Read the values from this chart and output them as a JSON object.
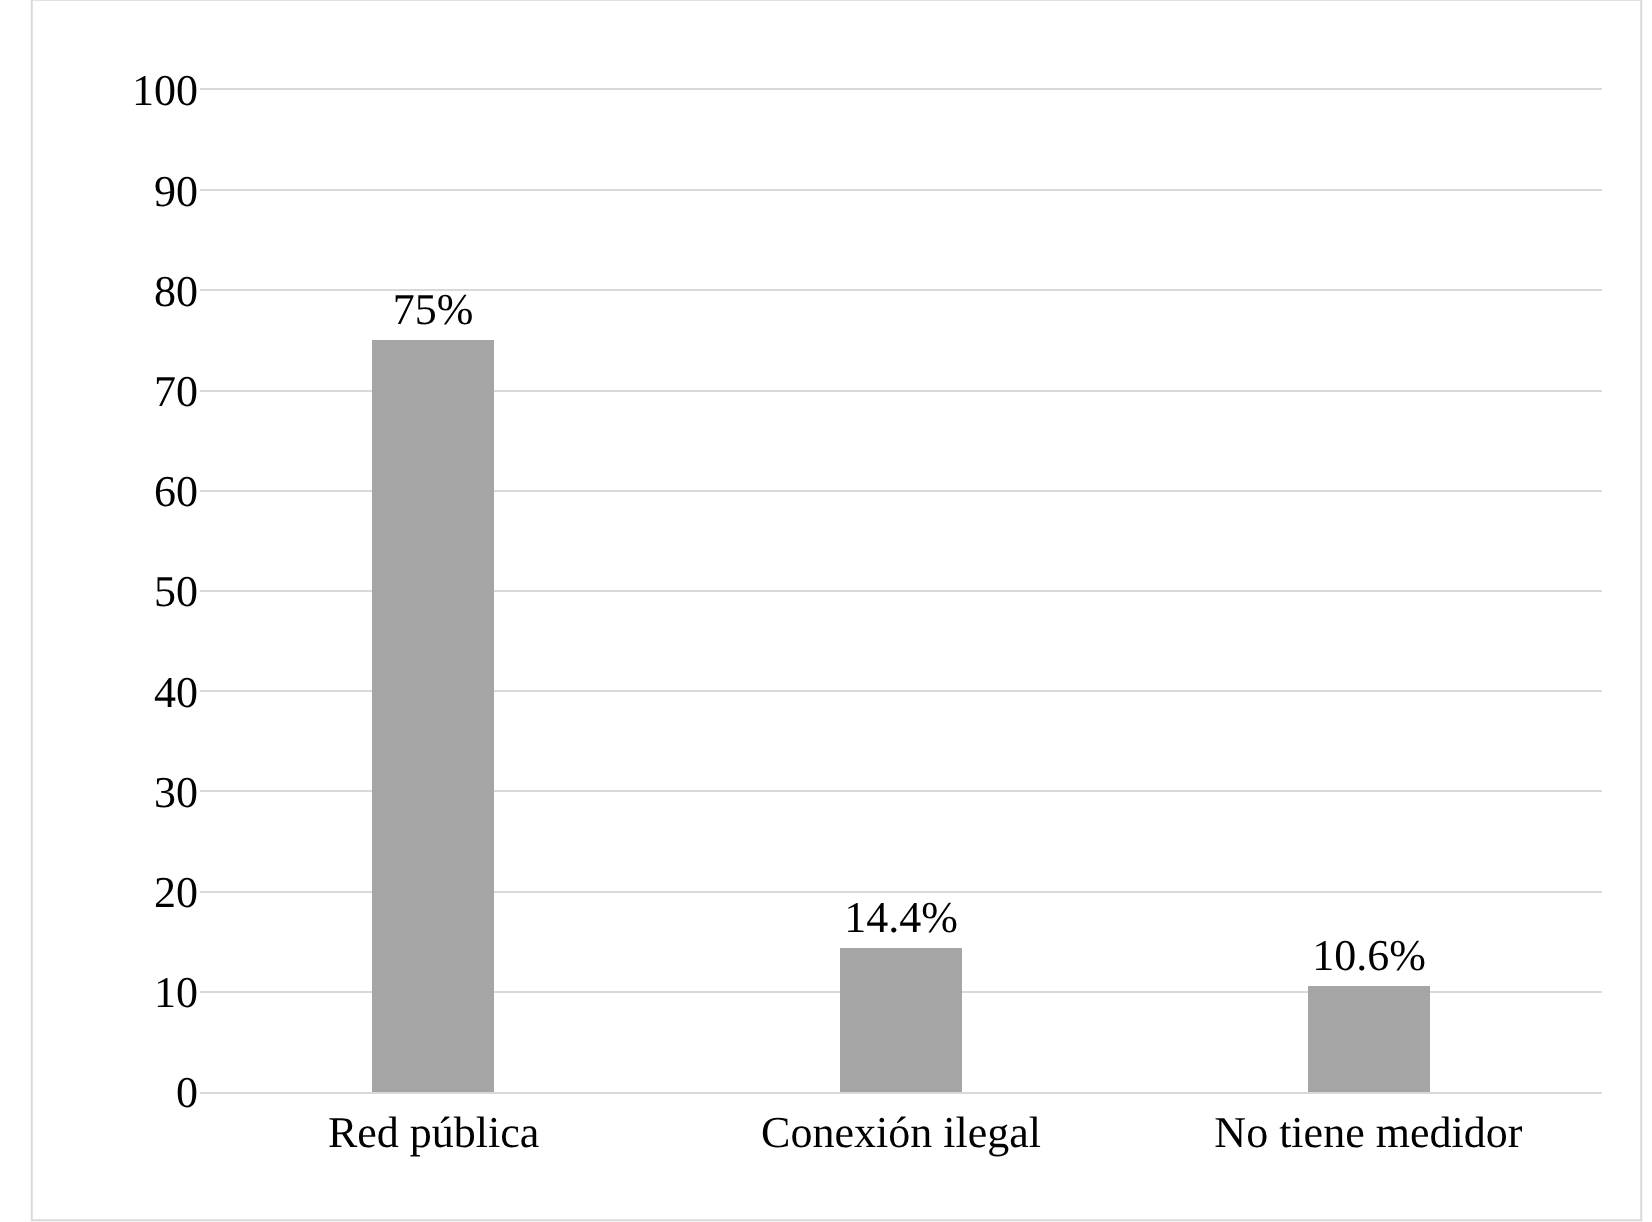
{
  "chart_data": {
    "type": "bar",
    "categories": [
      "Red pública",
      "Conexión ilegal",
      "No tiene medidor"
    ],
    "values": [
      75,
      14.4,
      10.6
    ],
    "value_labels": [
      "75%",
      "14.4%",
      "10.6%"
    ],
    "color": "#a5a5a5",
    "ylim": [
      0,
      100
    ],
    "yticks": [
      0,
      10,
      20,
      30,
      40,
      50,
      60,
      70,
      80,
      90,
      100
    ],
    "grid": "y"
  }
}
